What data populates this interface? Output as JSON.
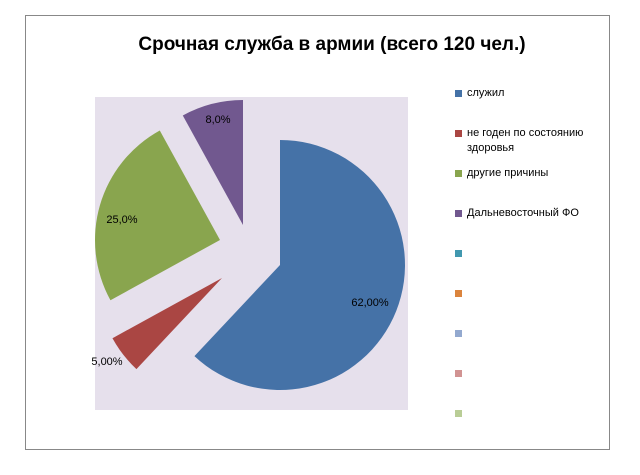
{
  "chart_data": {
    "type": "pie",
    "title": "Срочная служба в армии (всего 120 чел.)",
    "categories": [
      "служил",
      "не годен по состоянию здоровья",
      "другие причины",
      "Дальневосточный ФО",
      null,
      null,
      null,
      null,
      null
    ],
    "values": [
      62,
      5,
      25,
      8,
      null,
      null,
      null,
      null,
      null
    ],
    "value_labels": [
      "62,00%",
      "5,00%",
      "25,0%",
      "8,0%",
      null,
      null,
      null,
      null,
      null
    ],
    "colors": [
      "#4572A7",
      "#AA4643",
      "#89A54E",
      "#71588F",
      "#4198AF",
      "#DB843D",
      "#93A9CF",
      "#D19392",
      "#B9CD96"
    ],
    "legend": "right"
  }
}
